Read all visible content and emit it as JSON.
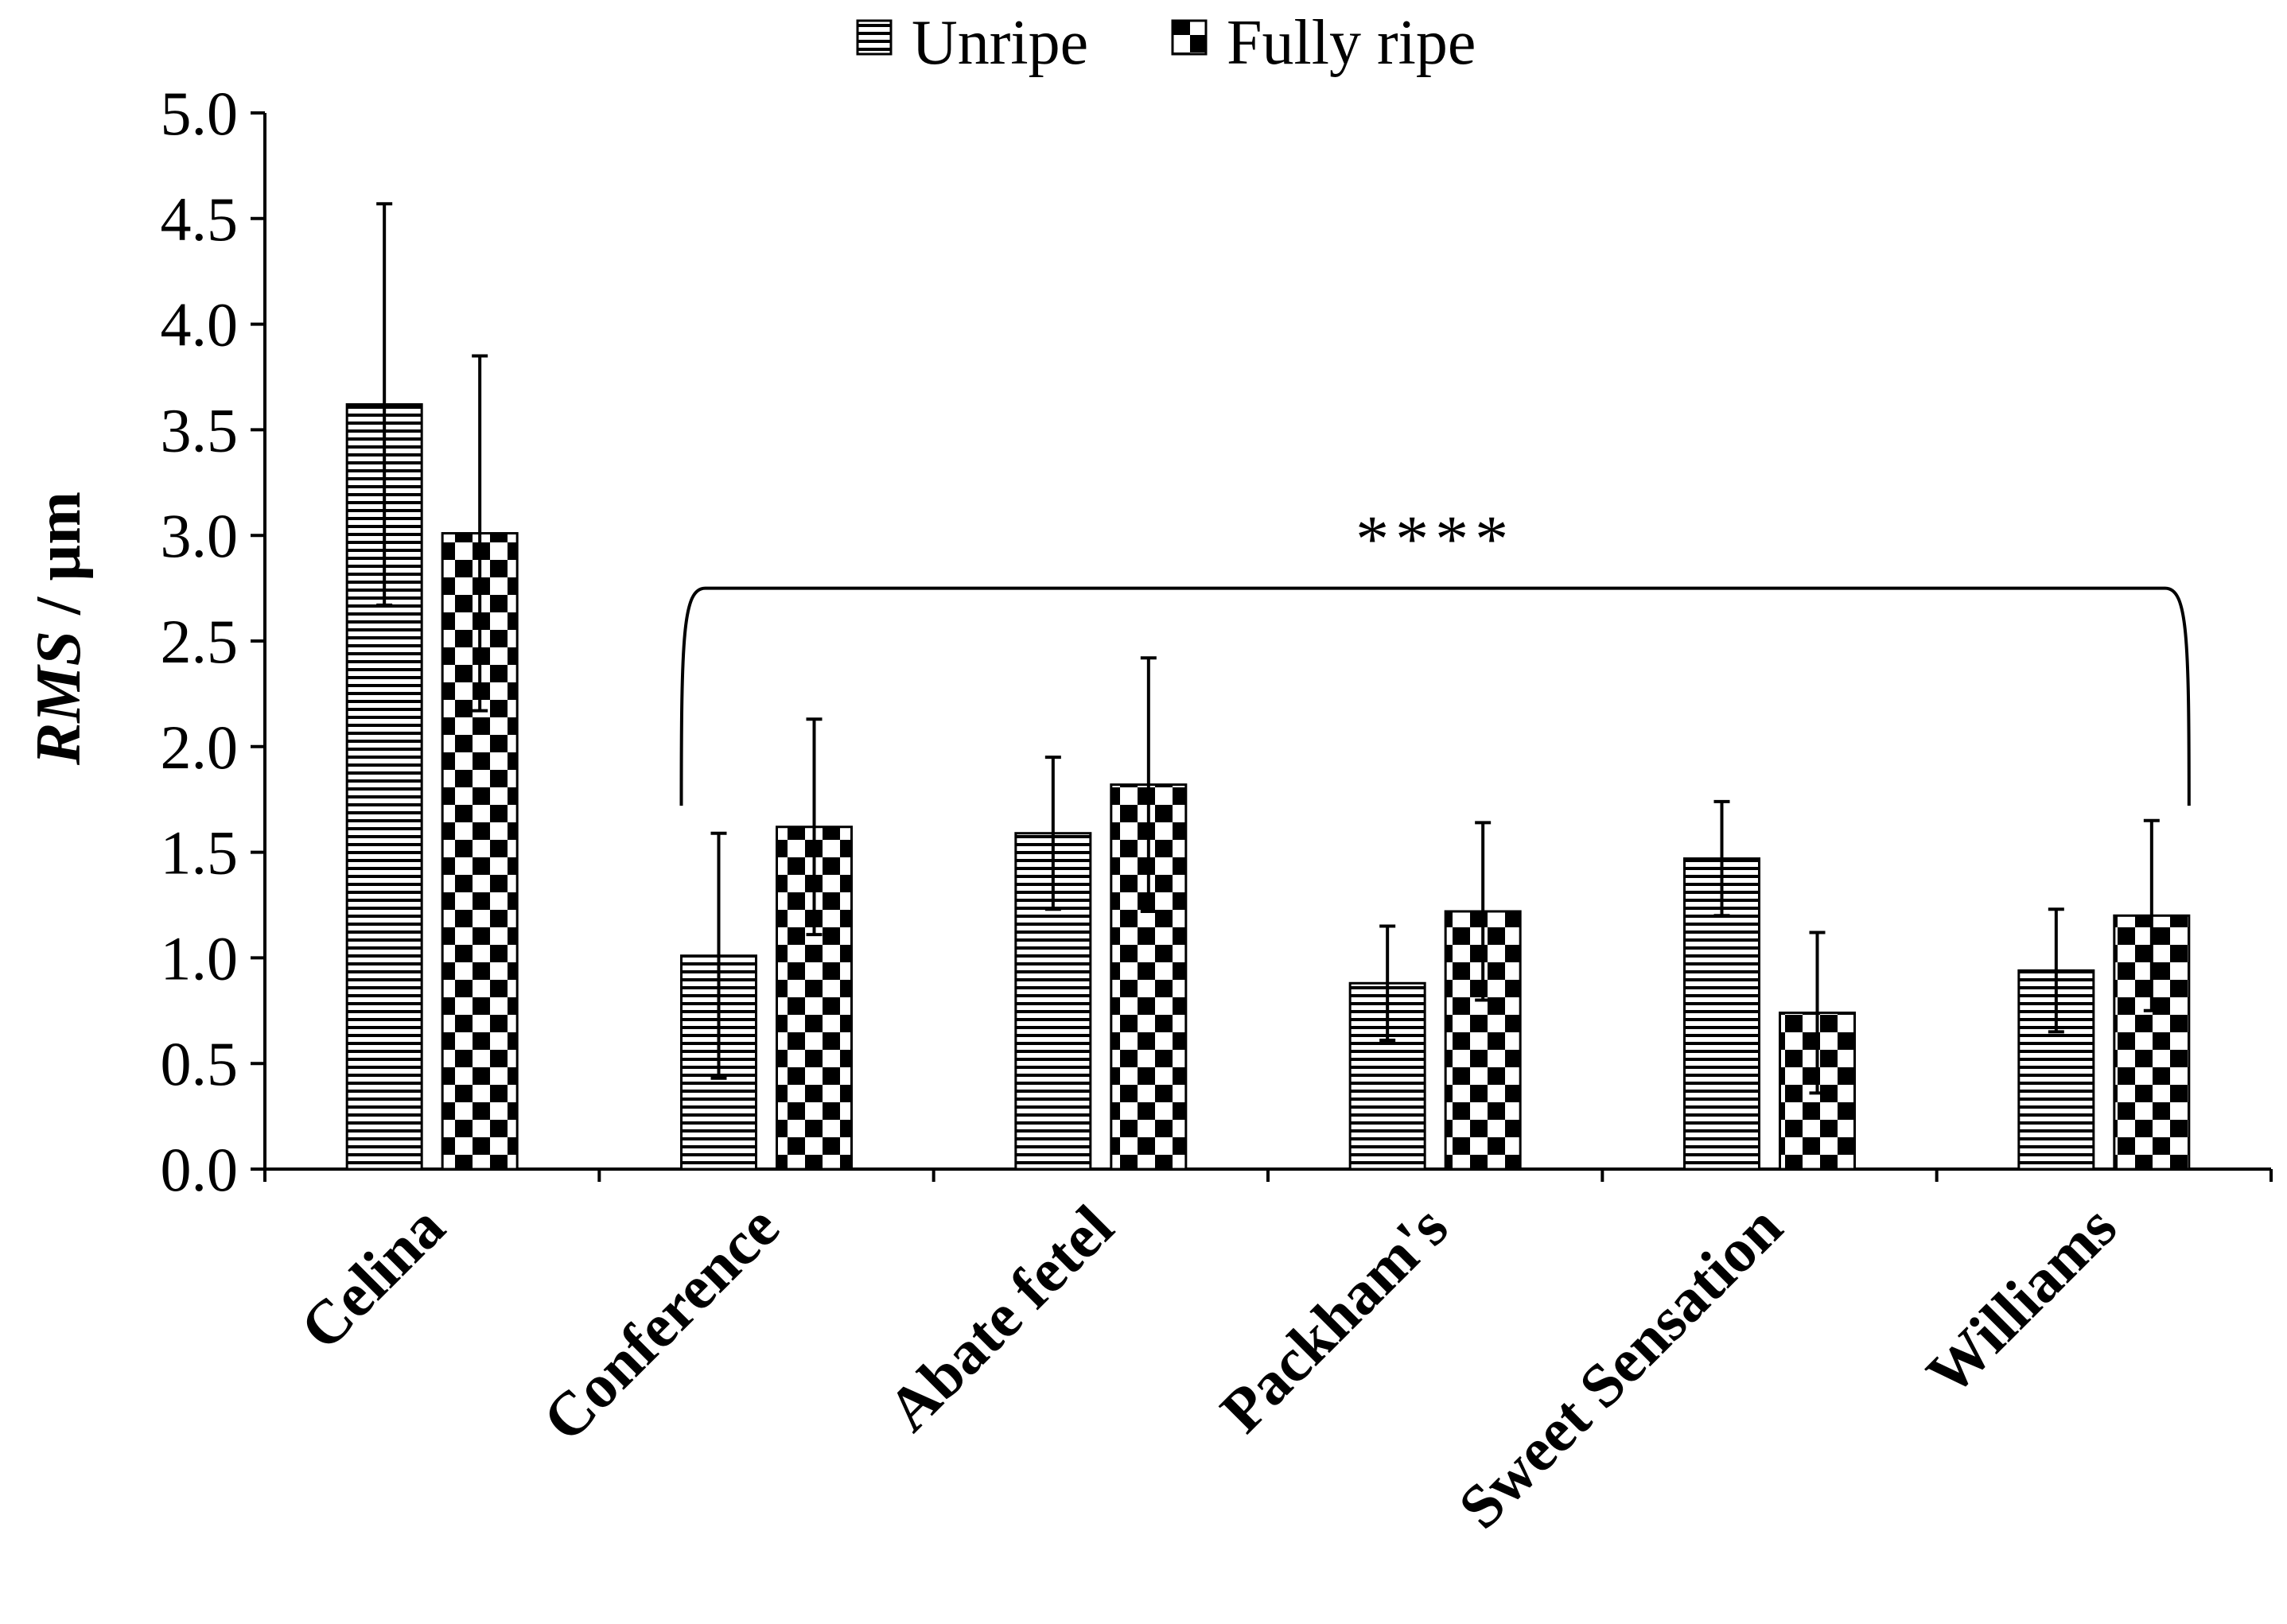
{
  "chart_data": {
    "type": "bar",
    "title": "",
    "xlabel": "",
    "ylabel": "RMS / µm",
    "ylabel_italic_part": "RMS",
    "ylabel_rest": " / µm",
    "ylim": [
      0,
      5.0
    ],
    "yticks": [
      "0.0",
      "0.5",
      "1.0",
      "1.5",
      "2.0",
      "2.5",
      "3.0",
      "3.5",
      "4.0",
      "4.5",
      "5.0"
    ],
    "legend_position": "top-center",
    "categories": [
      "Celina",
      "Conference",
      "Abate fetel",
      "Packham's",
      "Sweet Sensation",
      "Williams"
    ],
    "series": [
      {
        "name": "Unripe",
        "pattern": "horizontal-stripes",
        "values": [
          3.62,
          1.01,
          1.59,
          0.88,
          1.47,
          0.94
        ],
        "errors": [
          0.95,
          0.58,
          0.36,
          0.27,
          0.27,
          0.29
        ]
      },
      {
        "name": "Fully ripe",
        "pattern": "checkerboard",
        "values": [
          3.01,
          1.62,
          1.82,
          1.22,
          0.74,
          1.2
        ],
        "errors": [
          0.84,
          0.51,
          0.6,
          0.42,
          0.38,
          0.45
        ]
      }
    ],
    "annotation": {
      "text": "****",
      "spans": [
        "Conference",
        "Williams"
      ]
    }
  },
  "colors": {
    "ink": "#000000",
    "background": "#ffffff"
  }
}
